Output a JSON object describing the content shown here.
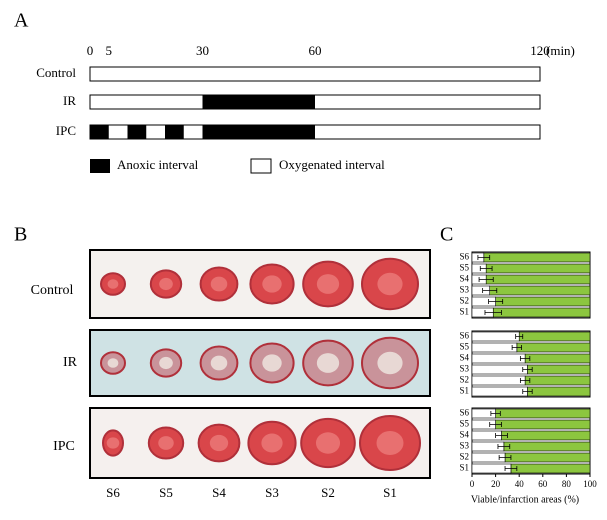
{
  "panel_a": {
    "label": "A",
    "xlim": [
      0,
      120
    ],
    "ticks": [
      0,
      5,
      30,
      60,
      120
    ],
    "unit": "(min)",
    "rows": [
      {
        "name": "Control",
        "anoxic": []
      },
      {
        "name": "IR",
        "anoxic": [
          [
            30,
            60
          ]
        ]
      },
      {
        "name": "IPC",
        "anoxic": [
          [
            0,
            5
          ],
          [
            10,
            15
          ],
          [
            20,
            25
          ],
          [
            30,
            60
          ]
        ]
      }
    ],
    "legend": [
      "Anoxic interval",
      "Oxygenated interval"
    ]
  },
  "panel_b": {
    "label": "B",
    "groups": [
      "Control",
      "IR",
      "IPC"
    ],
    "samples": [
      "S6",
      "S5",
      "S4",
      "S3",
      "S2",
      "S1"
    ]
  },
  "panel_c": {
    "label": "C"
  },
  "chart_data": [
    {
      "type": "bar",
      "orientation": "horizontal",
      "categories": [
        "S6",
        "S5",
        "S4",
        "S3",
        "S2",
        "S1"
      ],
      "values": [
        10,
        12,
        12,
        15,
        20,
        18
      ],
      "errors": [
        5,
        5,
        6,
        6,
        6,
        7
      ],
      "color": "#ffffff",
      "rest_color": "#8cc63f",
      "xlim": [
        0,
        100
      ]
    },
    {
      "type": "bar",
      "orientation": "horizontal",
      "categories": [
        "S6",
        "S5",
        "S4",
        "S3",
        "S2",
        "S1"
      ],
      "values": [
        40,
        38,
        45,
        47,
        45,
        47
      ],
      "errors": [
        3,
        4,
        4,
        4,
        4,
        4
      ],
      "color": "#ffffff",
      "rest_color": "#8cc63f",
      "xlim": [
        0,
        100
      ]
    },
    {
      "type": "bar",
      "orientation": "horizontal",
      "categories": [
        "S6",
        "S5",
        "S4",
        "S3",
        "S2",
        "S1"
      ],
      "values": [
        20,
        20,
        25,
        27,
        28,
        33
      ],
      "errors": [
        4,
        5,
        5,
        5,
        5,
        5
      ],
      "color": "#ffffff",
      "rest_color": "#8cc63f",
      "xlim": [
        0,
        100
      ],
      "xticks": [
        0,
        20,
        40,
        60,
        80,
        100
      ],
      "xlabel": "Viable/infarction areas (%)"
    }
  ]
}
